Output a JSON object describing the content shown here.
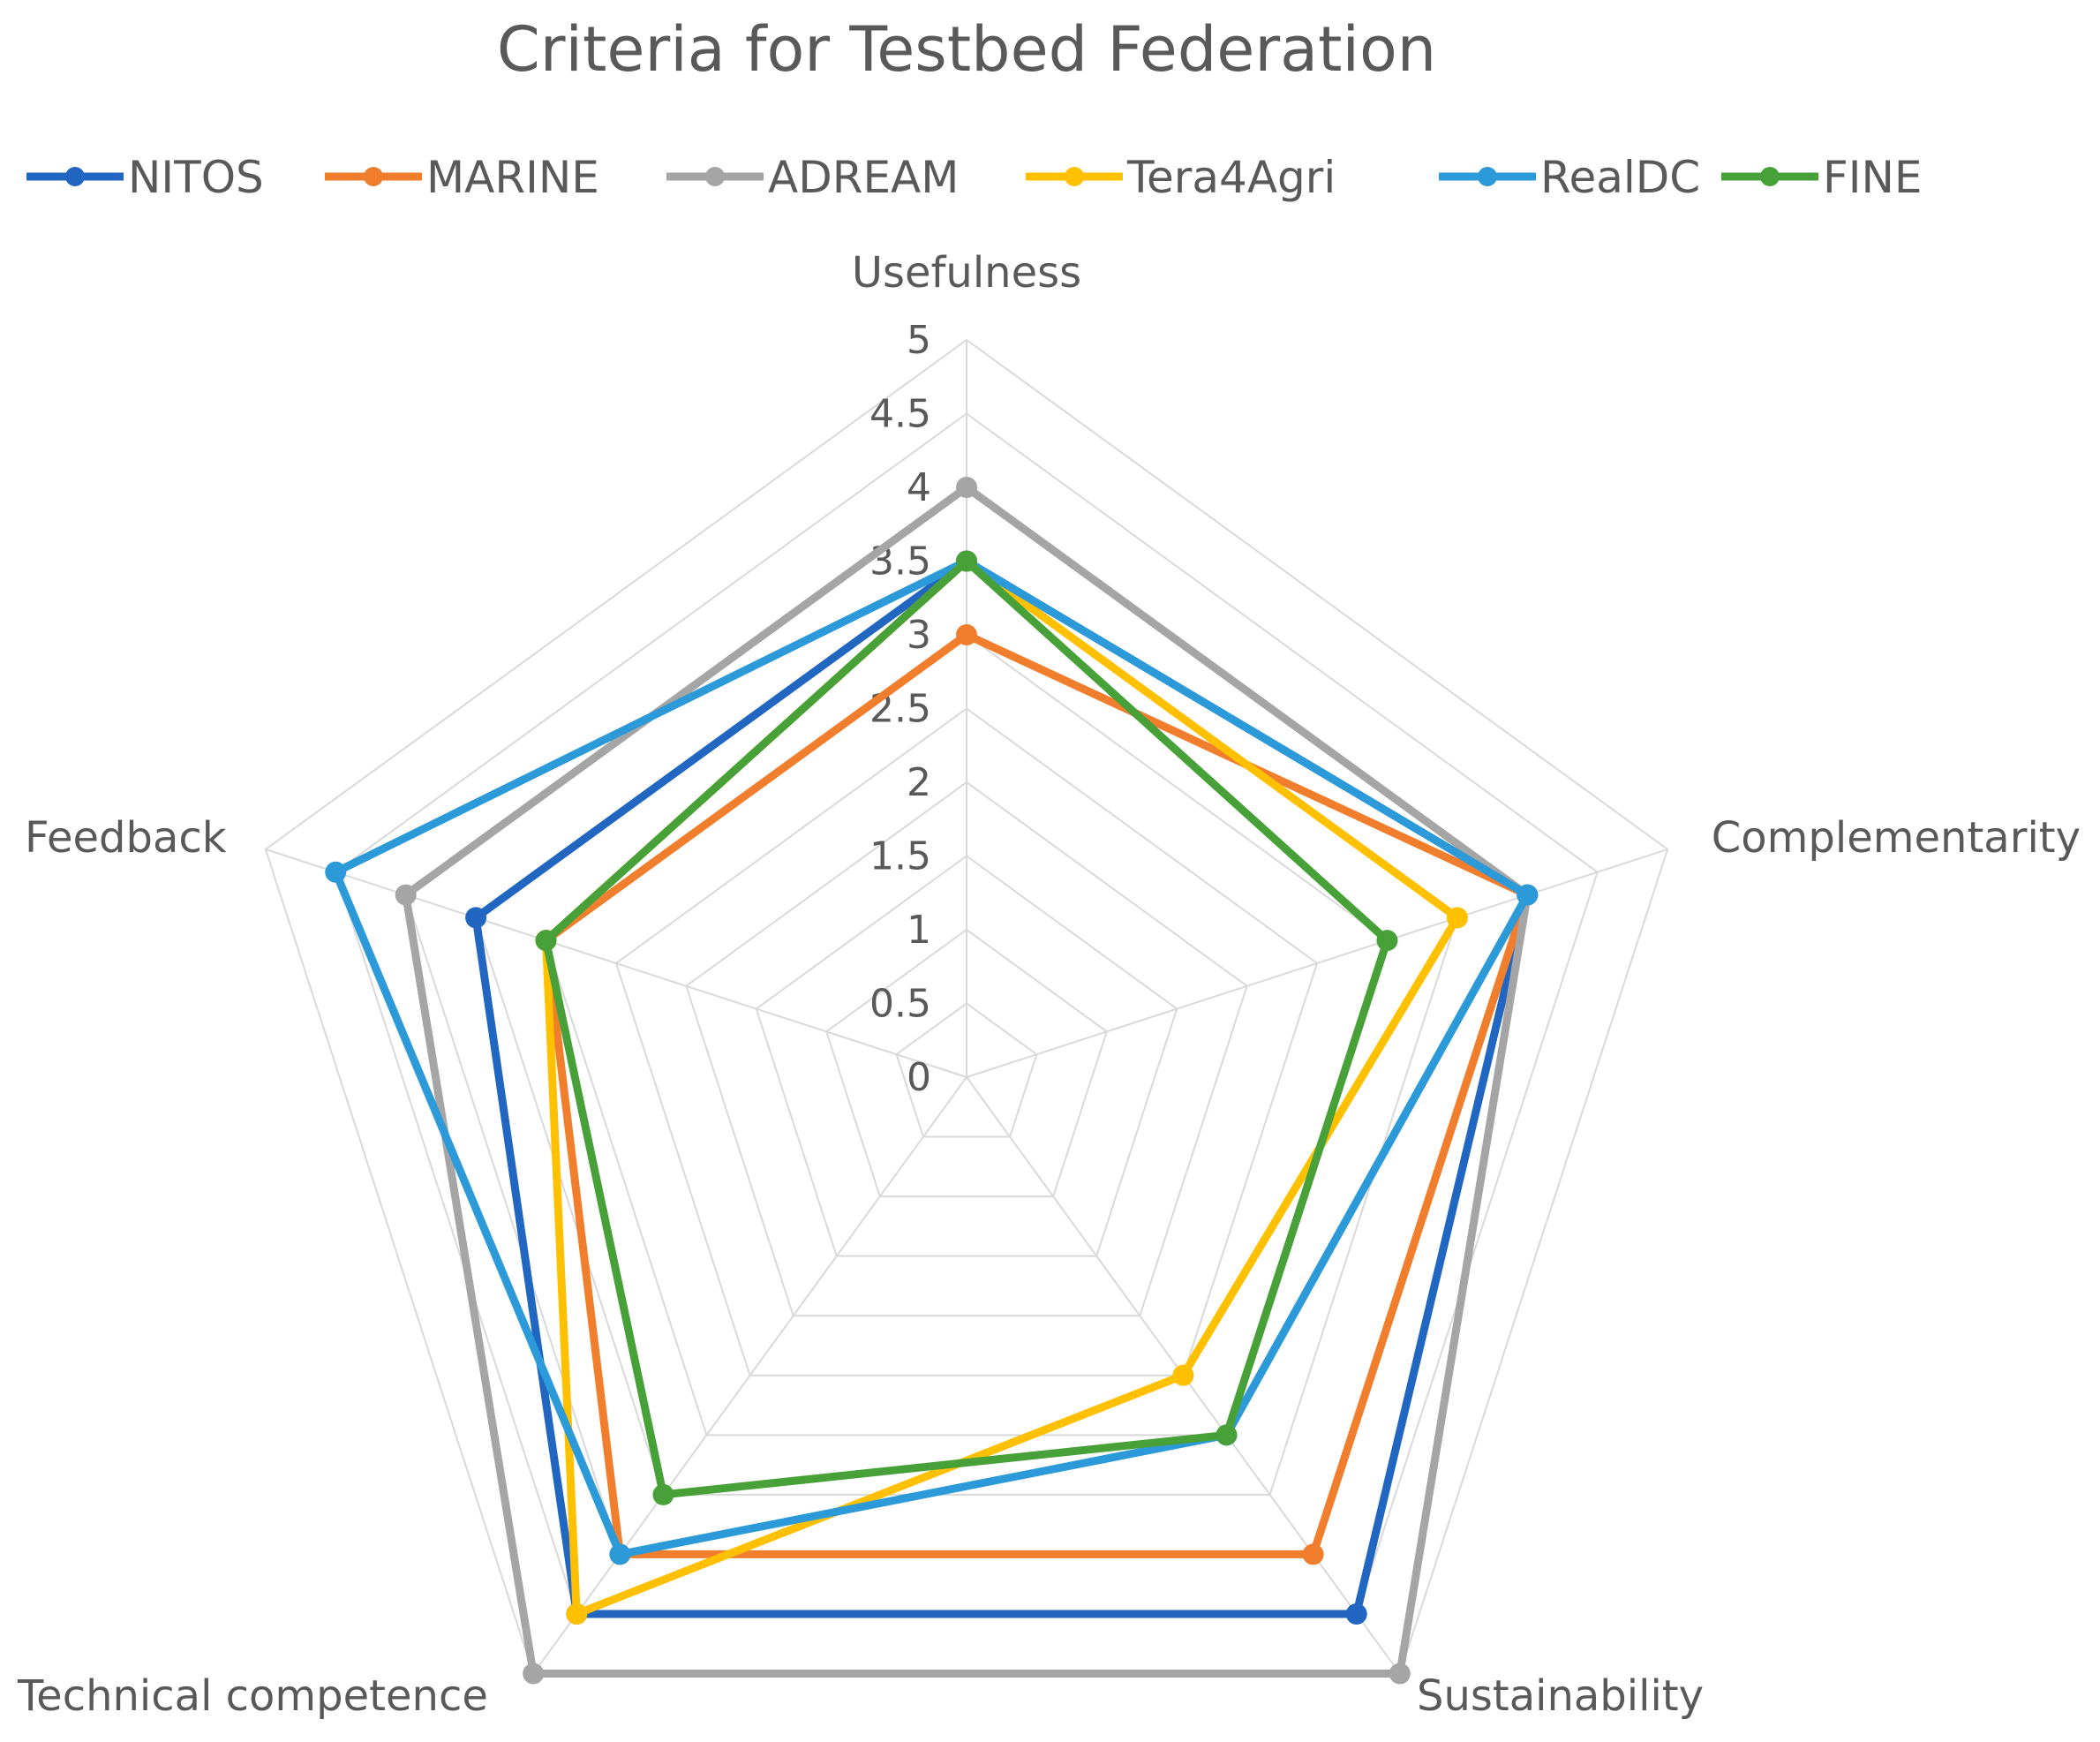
{
  "chart_data": {
    "type": "radar",
    "title": "Criteria for Testbed Federation",
    "categories": [
      "Usefulness",
      "Complementarity",
      "Sustainability",
      "Technical competence",
      "Feedback"
    ],
    "rlim": [
      0,
      5
    ],
    "ticks": [
      "0",
      "0.5",
      "1",
      "1.5",
      "2",
      "2.5",
      "3",
      "3.5",
      "4",
      "4.5",
      "5"
    ],
    "legend_position": "top",
    "series": [
      {
        "name": "NITOS",
        "color": "#2166C0",
        "values": [
          3.5,
          4.0,
          4.5,
          4.5,
          3.5
        ]
      },
      {
        "name": "MARINE",
        "color": "#F07E2D",
        "values": [
          3.0,
          4.0,
          4.0,
          4.0,
          3.0
        ]
      },
      {
        "name": "ADREAM",
        "color": "#A5A5A5",
        "values": [
          4.0,
          4.0,
          5.0,
          5.0,
          4.0
        ]
      },
      {
        "name": "Tera4Agri",
        "color": "#FFC000",
        "values": [
          3.5,
          3.5,
          2.5,
          4.5,
          3.0
        ]
      },
      {
        "name": "RealDC",
        "color": "#2C9AD8",
        "values": [
          3.5,
          4.0,
          3.0,
          4.0,
          4.5
        ]
      },
      {
        "name": "FINE",
        "color": "#48A138",
        "values": [
          3.5,
          3.0,
          3.0,
          3.5,
          3.0
        ]
      }
    ]
  }
}
